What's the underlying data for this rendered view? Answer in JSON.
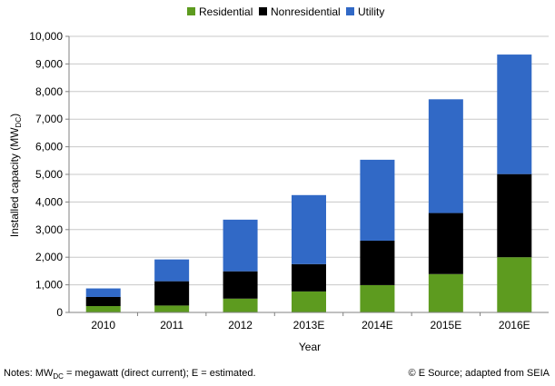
{
  "chart_data": {
    "type": "bar",
    "stacked": true,
    "categories": [
      "2010",
      "2011",
      "2012",
      "2013E",
      "2014E",
      "2015E",
      "2016E"
    ],
    "series": [
      {
        "name": "Residential",
        "color": "#5d9b1f",
        "values": [
          230,
          250,
          500,
          760,
          990,
          1390,
          2000
        ]
      },
      {
        "name": "Nonresidential",
        "color": "#000000",
        "values": [
          330,
          880,
          990,
          990,
          1610,
          2210,
          3010
        ]
      },
      {
        "name": "Utility",
        "color": "#3169c6",
        "values": [
          310,
          790,
          1870,
          2500,
          2930,
          4120,
          4330
        ]
      }
    ],
    "ylim": [
      0,
      10000
    ],
    "yticks": [
      0,
      1000,
      2000,
      3000,
      4000,
      5000,
      6000,
      7000,
      8000,
      9000,
      10000
    ],
    "ytick_labels": [
      "0",
      "1,000",
      "2,000",
      "3,000",
      "4,000",
      "5,000",
      "6,000",
      "7,000",
      "8,000",
      "9,000",
      "10,000"
    ],
    "xlabel": "Year",
    "ylabel_main": "Installed capacity (MW",
    "ylabel_sub": "DC",
    "ylabel_end": ")",
    "grid": true,
    "legend_position": "top"
  },
  "footer": {
    "notes_prefix": "Notes:  MW",
    "notes_sub": "DC",
    "notes_suffix": " = megawatt  (direct current); E = estimated.",
    "source": "© E Source; adapted from SEIA"
  }
}
